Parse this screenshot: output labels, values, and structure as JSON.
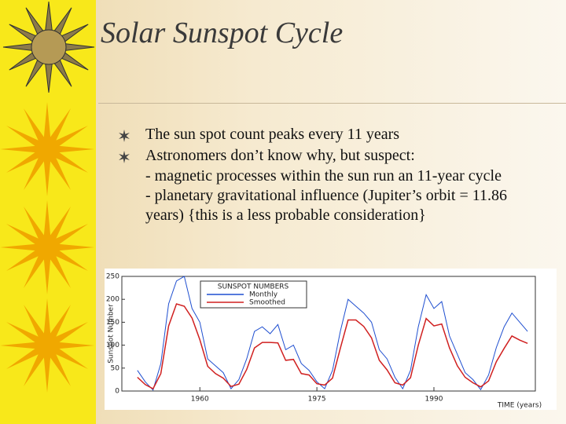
{
  "slide": {
    "title": "Solar Sunspot Cycle",
    "bullets": [
      {
        "text": "The sun spot count peaks every 11 years"
      },
      {
        "text": "Astronomers don’t know why, but suspect:",
        "sub": [
          "- magnetic processes within the sun run an 11-year cycle",
          "- planetary gravitational influence (Jupiter’s orbit = 11.86 years) {this is a less probable consideration}"
        ]
      }
    ]
  },
  "chart_data": {
    "type": "line",
    "legend_title": "SUNSPOT NUMBERS",
    "y_label": "Sunspot Number",
    "x_label": "TIME (years)",
    "x": [
      1952,
      1953,
      1954,
      1955,
      1956,
      1957,
      1958,
      1959,
      1960,
      1961,
      1962,
      1963,
      1964,
      1965,
      1966,
      1967,
      1968,
      1969,
      1970,
      1971,
      1972,
      1973,
      1974,
      1975,
      1976,
      1977,
      1978,
      1979,
      1980,
      1981,
      1982,
      1983,
      1984,
      1985,
      1986,
      1987,
      1988,
      1989,
      1990,
      1991,
      1992,
      1993,
      1994,
      1995,
      1996,
      1997,
      1998,
      1999,
      2000,
      2001,
      2002
    ],
    "series": [
      {
        "name": "Monthly",
        "color": "#1f4fd0",
        "values": [
          45,
          20,
          2,
          60,
          190,
          240,
          250,
          180,
          150,
          70,
          55,
          40,
          5,
          25,
          70,
          130,
          140,
          125,
          145,
          90,
          100,
          60,
          45,
          20,
          5,
          45,
          130,
          200,
          185,
          170,
          150,
          90,
          70,
          30,
          5,
          45,
          140,
          210,
          180,
          195,
          120,
          80,
          40,
          25,
          3,
          35,
          95,
          140,
          170,
          150,
          130
        ]
      },
      {
        "name": "Smoothed",
        "color": "#d02020",
        "values": [
          30,
          14,
          5,
          38,
          142,
          190,
          185,
          159,
          112,
          54,
          38,
          28,
          10,
          15,
          47,
          94,
          106,
          106,
          105,
          67,
          69,
          38,
          35,
          16,
          13,
          28,
          93,
          155,
          155,
          141,
          116,
          67,
          46,
          18,
          13,
          29,
          100,
          158,
          142,
          146,
          94,
          55,
          30,
          18,
          9,
          22,
          64,
          93,
          120,
          111,
          104
        ]
      }
    ],
    "xlim": [
      1950,
      2003
    ],
    "xticks": [
      1960,
      1975,
      1990
    ],
    "ylim": [
      0,
      250
    ],
    "yticks": [
      0,
      50,
      100,
      150,
      200,
      250
    ]
  }
}
